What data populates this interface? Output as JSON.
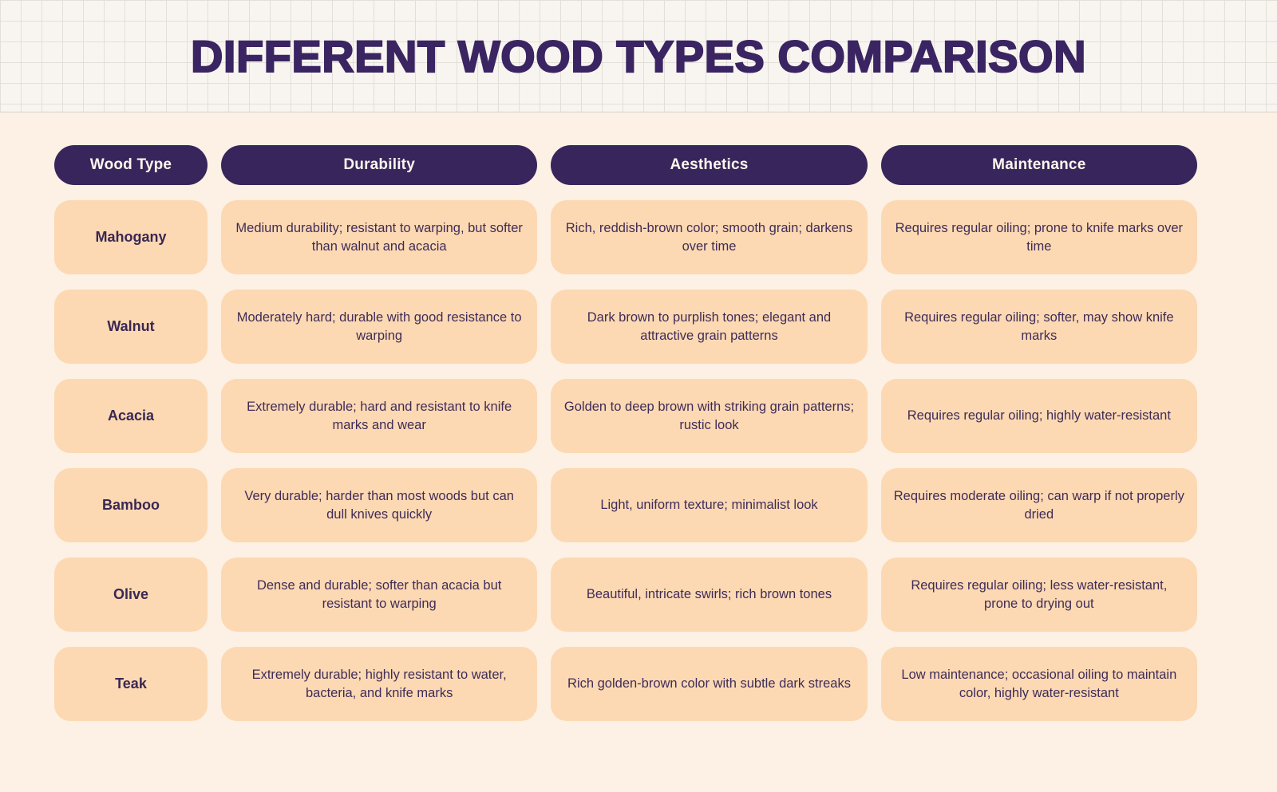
{
  "title": "DIFFERENT WOOD TYPES COMPARISON",
  "colors": {
    "title_text": "#3a2562",
    "header_pill_bg": "#38255b",
    "header_pill_text": "#fdf6ee",
    "cell_bg": "#fcd9b3",
    "cell_text": "#3f2c58",
    "page_bg": "#fdf0e4",
    "band_bg": "#f8f5f0",
    "band_grid_line": "#e2dfd9"
  },
  "table": {
    "headers": [
      "Wood Type",
      "Durability",
      "Aesthetics",
      "Maintenance"
    ],
    "rows": [
      {
        "wood": "Mahogany",
        "durability": "Medium durability; resistant to warping, but softer than walnut and acacia",
        "aesthetics": "Rich, reddish-brown color; smooth grain; darkens over time",
        "maintenance": "Requires regular oiling; prone to knife marks over time"
      },
      {
        "wood": "Walnut",
        "durability": "Moderately hard; durable with good resistance to warping",
        "aesthetics": "Dark brown to purplish tones; elegant and attractive grain patterns",
        "maintenance": "Requires regular oiling; softer, may show knife marks"
      },
      {
        "wood": "Acacia",
        "durability": "Extremely durable; hard and resistant to knife marks and wear",
        "aesthetics": "Golden to deep brown with striking grain patterns; rustic look",
        "maintenance": "Requires regular oiling; highly water-resistant"
      },
      {
        "wood": "Bamboo",
        "durability": "Very durable; harder than most woods but can dull knives quickly",
        "aesthetics": "Light, uniform texture; minimalist look",
        "maintenance": "Requires moderate oiling; can warp if not properly dried"
      },
      {
        "wood": "Olive",
        "durability": "Dense and durable; softer than acacia but resistant to warping",
        "aesthetics": "Beautiful, intricate swirls; rich brown tones",
        "maintenance": "Requires regular oiling; less water-resistant, prone to drying out"
      },
      {
        "wood": "Teak",
        "durability": "Extremely durable; highly resistant to water, bacteria, and knife marks",
        "aesthetics": "Rich golden-brown color with subtle dark streaks",
        "maintenance": "Low maintenance; occasional oiling to maintain color, highly water-resistant"
      }
    ]
  },
  "chart_data": {
    "type": "table",
    "title": "DIFFERENT WOOD TYPES COMPARISON",
    "columns": [
      "Wood Type",
      "Durability",
      "Aesthetics",
      "Maintenance"
    ],
    "rows": [
      [
        "Mahogany",
        "Medium durability; resistant to warping, but softer than walnut and acacia",
        "Rich, reddish-brown color; smooth grain; darkens over time",
        "Requires regular oiling; prone to knife marks over time"
      ],
      [
        "Walnut",
        "Moderately hard; durable with good resistance to warping",
        "Dark brown to purplish tones; elegant and attractive grain patterns",
        "Requires regular oiling; softer, may show knife marks"
      ],
      [
        "Acacia",
        "Extremely durable; hard and resistant to knife marks and wear",
        "Golden to deep brown with striking grain patterns; rustic look",
        "Requires regular oiling; highly water-resistant"
      ],
      [
        "Bamboo",
        "Very durable; harder than most woods but can dull knives quickly",
        "Light, uniform texture; minimalist look",
        "Requires moderate oiling; can warp if not properly dried"
      ],
      [
        "Olive",
        "Dense and durable; softer than acacia but resistant to warping",
        "Beautiful, intricate swirls; rich brown tones",
        "Requires regular oiling; less water-resistant, prone to drying out"
      ],
      [
        "Teak",
        "Extremely durable; highly resistant to water, bacteria, and knife marks",
        "Rich golden-brown color with subtle dark streaks",
        "Low maintenance; occasional oiling to maintain color, highly water-resistant"
      ]
    ],
    "layout": "header pills dark purple, body cells light peach, rounded rectangles, grid-paper title band"
  }
}
